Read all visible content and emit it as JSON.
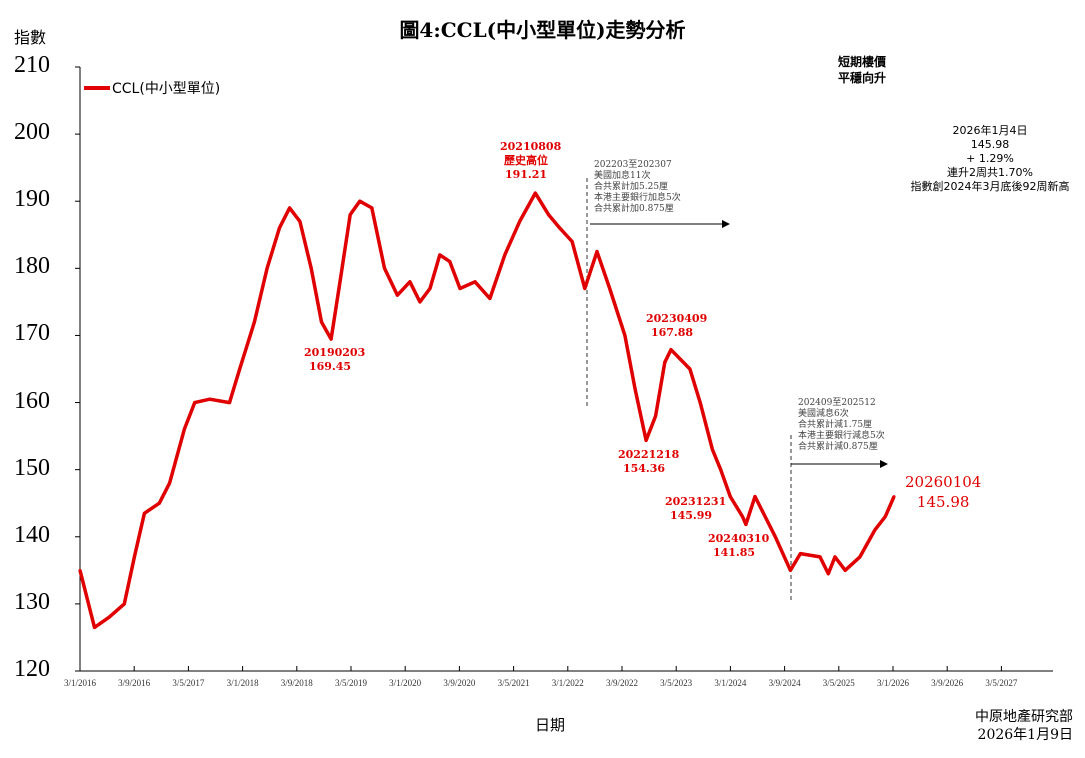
{
  "chart_data": {
    "type": "line",
    "title": "圖4:CCL(中小型單位)走勢分析",
    "ylabel": "指數",
    "xlabel": "日期",
    "ylim": [
      120,
      210
    ],
    "yticks": [
      "120",
      "130",
      "140",
      "150",
      "160",
      "170",
      "180",
      "190",
      "200",
      "210"
    ],
    "xticks": [
      "3/1/2016",
      "3/9/2016",
      "3/5/2017",
      "3/1/2018",
      "3/9/2018",
      "3/5/2019",
      "3/1/2020",
      "3/9/2020",
      "3/5/2021",
      "3/1/2022",
      "3/9/2022",
      "3/5/2023",
      "3/1/2024",
      "3/9/2024",
      "3/5/2025",
      "3/1/2026",
      "3/9/2026",
      "3/5/2027"
    ],
    "legend": "top-left",
    "grid": false,
    "series": [
      {
        "name": "CCL(中小型單位)",
        "color": "#e00000",
        "x": [
          "2016-01-03",
          "2016-03-08",
          "2016-05-12",
          "2016-07-20",
          "2016-09-03",
          "2016-10-18",
          "2016-12-24",
          "2017-02-08",
          "2017-04-15",
          "2017-06-01",
          "2017-08-07",
          "2017-11-04",
          "2017-12-20",
          "2018-02-24",
          "2018-04-22",
          "2018-06-16",
          "2018-08-01",
          "2018-09-16",
          "2018-11-06",
          "2018-12-22",
          "2019-02-03",
          "2019-03-15",
          "2019-04-30",
          "2019-06-12",
          "2019-08-05",
          "2019-10-01",
          "2019-11-28",
          "2020-01-23",
          "2020-03-08",
          "2020-04-22",
          "2020-06-05",
          "2020-07-20",
          "2020-09-04",
          "2020-11-10",
          "2021-01-16",
          "2021-03-24",
          "2021-05-30",
          "2021-08-08",
          "2021-10-06",
          "2021-11-26",
          "2022-01-20",
          "2022-03-18",
          "2022-05-12",
          "2022-07-08",
          "2022-09-14",
          "2022-10-30",
          "2022-12-18",
          "2023-01-30",
          "2023-03-12",
          "2023-04-09",
          "2023-07-03",
          "2023-08-18",
          "2023-10-12",
          "2023-11-18",
          "2023-12-31",
          "2024-02-24",
          "2024-03-10",
          "2024-04-20",
          "2024-07-20",
          "2024-09-26",
          "2024-11-10",
          "2025-02-06",
          "2025-03-15",
          "2025-04-14",
          "2025-05-30",
          "2025-08-04",
          "2025-10-10",
          "2025-11-26",
          "2026-01-04"
        ],
        "y": [
          135,
          126.5,
          128,
          130,
          137,
          143.5,
          145,
          148,
          156,
          160,
          160.5,
          160,
          165,
          172,
          180,
          186,
          189,
          187,
          180,
          172,
          169.45,
          178,
          188,
          190,
          189,
          180,
          176,
          178,
          175,
          177,
          182,
          181,
          177,
          178,
          175.5,
          182,
          187,
          191.21,
          188,
          186,
          184,
          177,
          182.5,
          177,
          170,
          162,
          154.36,
          158,
          166,
          167.88,
          165,
          160,
          153,
          150,
          145.99,
          143,
          141.85,
          146,
          140,
          135,
          137.5,
          137,
          134.5,
          137,
          135,
          137,
          141,
          143,
          145.98
        ]
      }
    ],
    "annotations": {
      "peak": {
        "date": "20210808",
        "label": "歷史高位",
        "value": "191.21"
      },
      "lows_highs": [
        {
          "date": "20190203",
          "value": "169.45"
        },
        {
          "date": "20230409",
          "value": "167.88"
        },
        {
          "date": "20221218",
          "value": "154.36"
        },
        {
          "date": "20231231",
          "value": "145.99"
        },
        {
          "date": "20240310",
          "value": "141.85"
        }
      ],
      "latest": {
        "date": "20260104",
        "value": "145.98"
      },
      "hike_note": [
        "202203至202307",
        "美國加息11次",
        "合共累計加5.25厘",
        "本港主要銀行加息5次",
        "合共累計加0.875厘"
      ],
      "cut_note": [
        "202409至202512",
        "美國減息6次",
        "合共累計減1.75厘",
        "本港主要銀行減息5次",
        "合共累計減0.875厘"
      ],
      "outlook": [
        "短期樓價",
        "平穩向升"
      ],
      "info": [
        "2026年1月4日",
        "145.98",
        "+ 1.29%",
        "連升2周共1.70%",
        "指數創2024年3月底後92周新高"
      ]
    },
    "source": [
      "中原地產研究部",
      "2026年1月9日"
    ]
  }
}
